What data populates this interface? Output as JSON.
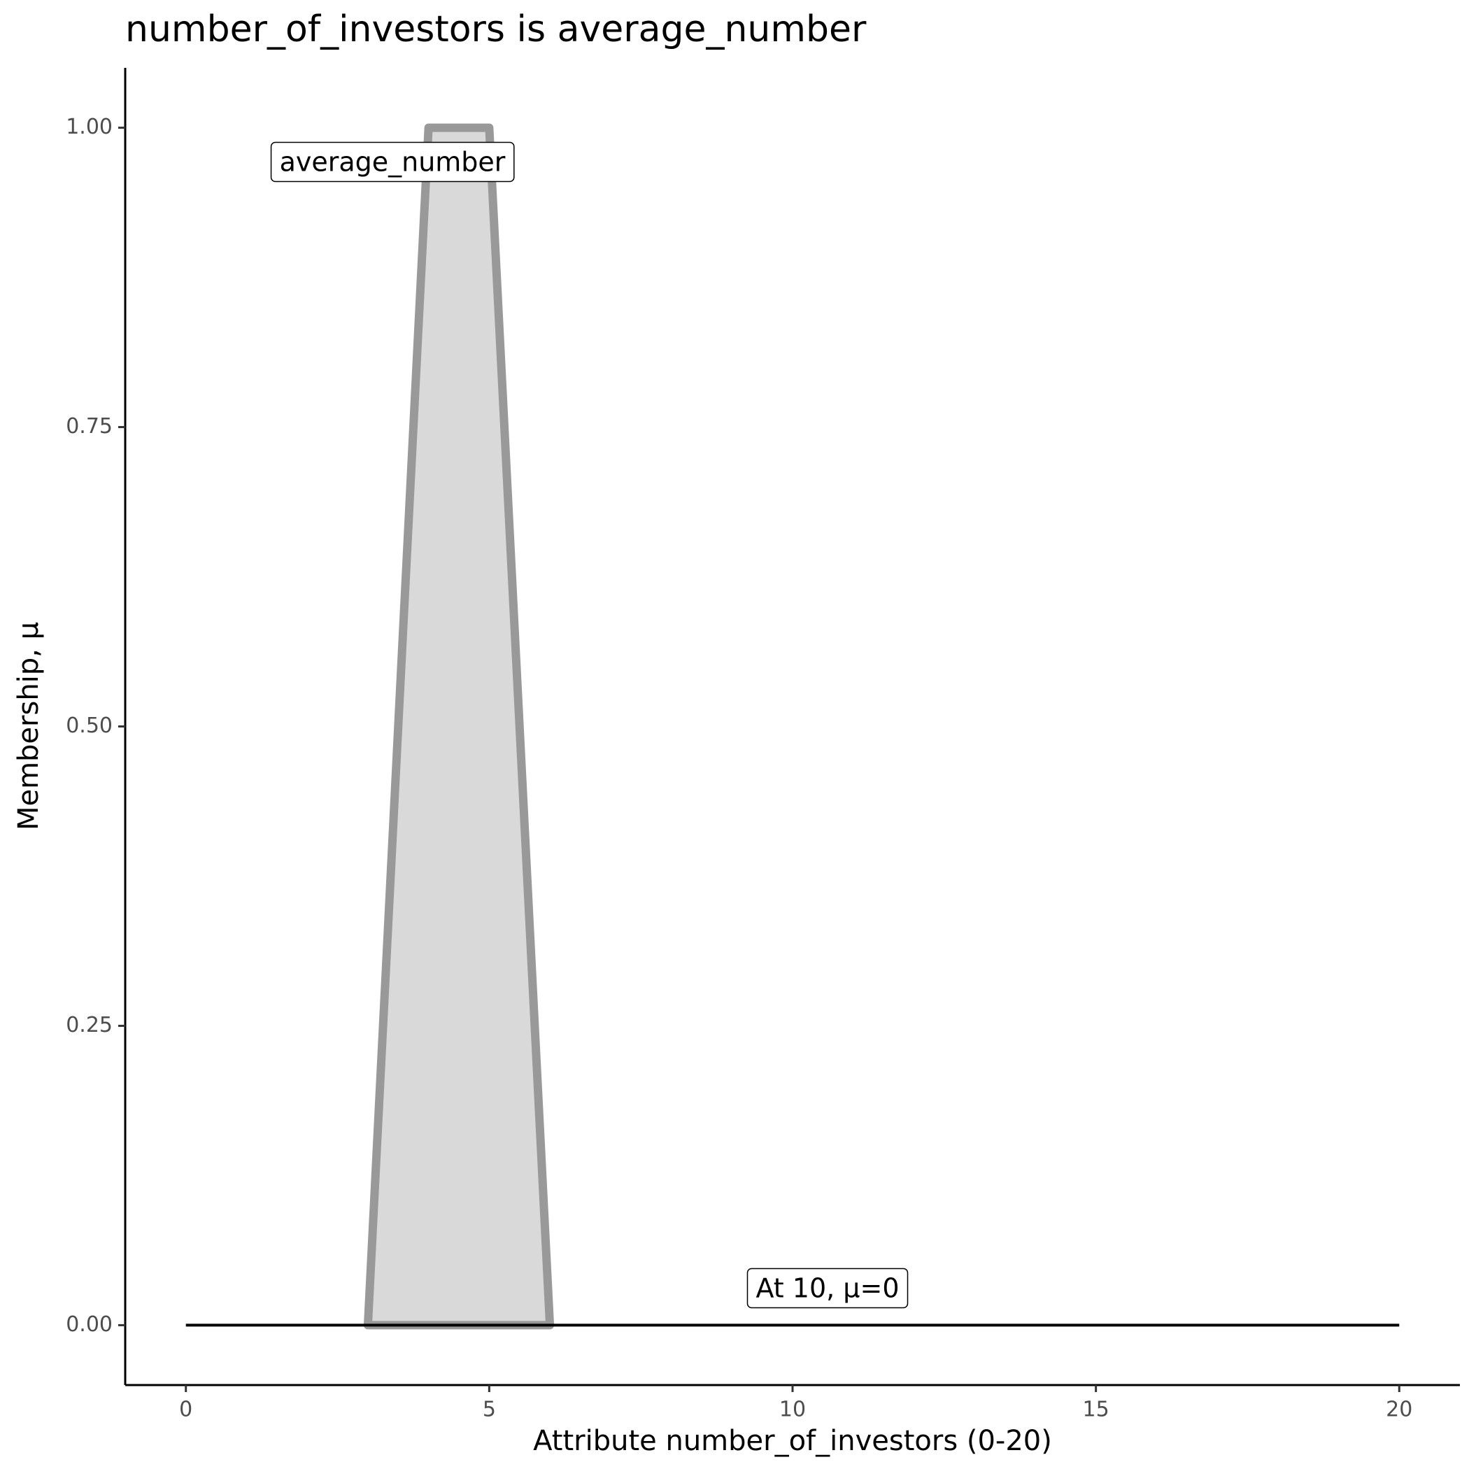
{
  "chart_data": {
    "type": "area",
    "title": "number_of_investors is average_number",
    "x_label": "Attribute number_of_investors (0-20)",
    "y_label": "Membership, μ",
    "series": [
      {
        "name": "average_number",
        "x": [
          3,
          4,
          5,
          6
        ],
        "values": [
          0,
          1,
          1,
          0
        ],
        "color": "#999999",
        "fill": "#d9d9d9"
      },
      {
        "x": [
          0,
          20
        ],
        "values": [
          0,
          0
        ],
        "color": "#000000"
      }
    ],
    "annotations": [
      "At 10, μ=0"
    ],
    "xlim": [
      -1,
      21
    ],
    "ylim": [
      -0.05,
      1.05
    ],
    "xticks": [
      0,
      5,
      10,
      15,
      20
    ],
    "yticks": [
      {
        "value": 0,
        "label": "0.00"
      },
      {
        "value": 0.25,
        "label": "0.25"
      },
      {
        "value": 0.5,
        "label": "0.50"
      },
      {
        "value": 0.75,
        "label": "0.75"
      },
      {
        "value": 1,
        "label": "1.00"
      }
    ],
    "grid": false
  }
}
